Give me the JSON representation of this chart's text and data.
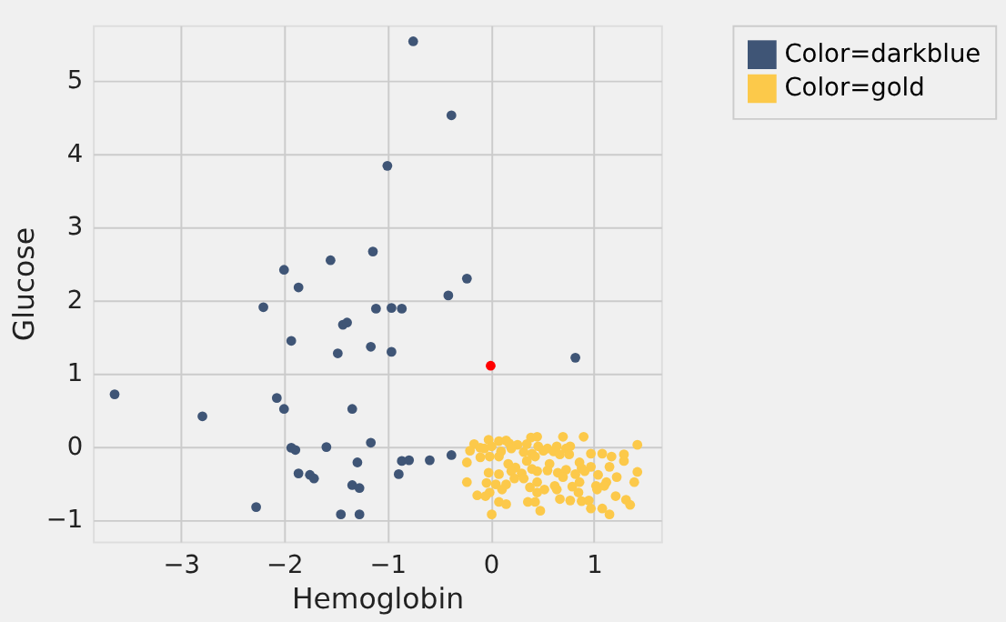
{
  "chart_data": {
    "type": "scatter",
    "xlabel": "Hemoglobin",
    "ylabel": "Glucose",
    "xlim": [
      -3.85,
      1.65
    ],
    "ylim": [
      -1.3,
      5.75
    ],
    "xticks": [
      -3,
      -2,
      -1,
      0,
      1
    ],
    "yticks": [
      -1,
      0,
      1,
      2,
      3,
      4,
      5
    ],
    "grid": true,
    "legend": "top right",
    "marker": "circle",
    "series": [
      {
        "name": "Color=darkblue",
        "color": "#3f5576",
        "x": [
          -3.64,
          -2.79,
          -2.2,
          -2.27,
          -2.0,
          -1.86,
          -2.07,
          -2.0,
          -1.93,
          -1.93,
          -1.89,
          -1.86,
          -1.75,
          -1.71,
          -1.59,
          -1.55,
          -1.48,
          -1.43,
          -1.39,
          -1.34,
          -1.45,
          -1.27,
          -1.34,
          -1.27,
          -1.29,
          -1.16,
          -1.14,
          -1.11,
          -1.16,
          -1.0,
          -0.96,
          -0.96,
          -0.86,
          -0.89,
          -0.86,
          -0.79,
          -0.75,
          -0.59,
          -0.38,
          -0.41,
          -0.23,
          -0.38,
          0.82
        ],
        "values": [
          0.71,
          0.41,
          1.9,
          -0.83,
          2.41,
          2.17,
          0.66,
          0.51,
          1.44,
          -0.02,
          -0.05,
          -0.37,
          -0.39,
          -0.44,
          -0.01,
          2.54,
          1.27,
          1.66,
          1.69,
          0.51,
          -0.93,
          -0.93,
          -0.53,
          -0.57,
          -0.22,
          0.05,
          2.66,
          1.88,
          1.36,
          3.83,
          1.89,
          1.29,
          1.88,
          -0.38,
          -0.2,
          -0.19,
          5.53,
          -0.19,
          4.52,
          2.06,
          2.29,
          -0.12,
          1.21
        ]
      },
      {
        "name": "Color=gold",
        "color": "#fcc94a",
        "x": [
          -0.02,
          0.08,
          0.15,
          0.18,
          0.39,
          0.45,
          0.7,
          0.9,
          -0.16,
          -0.1,
          0.01,
          0.26,
          0.35,
          0.46,
          0.55,
          0.64,
          0.77,
          1.42,
          -0.2,
          -0.06,
          0.1,
          0.2,
          0.32,
          0.4,
          0.51,
          0.61,
          0.73,
          -0.23,
          -0.1,
          -0.01,
          0.08,
          0.17,
          0.24,
          0.35,
          0.43,
          0.57,
          0.67,
          0.76,
          0.86,
          0.97,
          1.08,
          1.17,
          1.29,
          1.29,
          0.97,
          1.15,
          1.42,
          0.88,
          -0.02,
          0.08,
          0.2,
          0.3,
          0.4,
          0.45,
          0.55,
          0.65,
          0.73,
          0.82,
          0.91,
          1.04,
          1.12,
          1.22,
          1.39,
          -0.23,
          -0.04,
          0.05,
          0.15,
          0.23,
          0.32,
          0.45,
          0.62,
          0.7,
          0.79,
          0.86,
          1.02,
          1.1,
          -0.13,
          -0.01,
          0.11,
          0.38,
          0.45,
          0.52,
          0.64,
          0.85,
          1.03,
          1.21,
          -0.05,
          0.08,
          0.15,
          0.36,
          0.43,
          0.48,
          0.67,
          0.77,
          0.88,
          0.95,
          0.97,
          1.08,
          1.15,
          1.31,
          1.35,
          0.01
        ],
        "values": [
          0.09,
          0.07,
          0.08,
          0.04,
          0.12,
          0.13,
          0.13,
          0.13,
          0.03,
          -0.02,
          0.0,
          0.02,
          0.03,
          0.0,
          -0.03,
          0.0,
          0.0,
          0.02,
          -0.06,
          -0.03,
          -0.07,
          -0.03,
          -0.08,
          -0.1,
          -0.06,
          -0.07,
          -0.03,
          -0.22,
          -0.15,
          -0.14,
          -0.14,
          -0.24,
          -0.29,
          -0.2,
          -0.14,
          -0.24,
          -0.11,
          -0.11,
          -0.22,
          -0.1,
          -0.1,
          -0.14,
          -0.11,
          -0.2,
          -0.28,
          -0.28,
          -0.35,
          -0.3,
          -0.36,
          -0.38,
          -0.34,
          -0.37,
          -0.31,
          -0.34,
          -0.33,
          -0.36,
          -0.32,
          -0.38,
          -0.34,
          -0.39,
          -0.49,
          -0.42,
          -0.49,
          -0.49,
          -0.5,
          -0.52,
          -0.52,
          -0.44,
          -0.44,
          -0.49,
          -0.54,
          -0.42,
          -0.55,
          -0.49,
          -0.54,
          -0.54,
          -0.67,
          -0.63,
          -0.59,
          -0.56,
          -0.63,
          -0.59,
          -0.59,
          -0.63,
          -0.59,
          -0.68,
          -0.68,
          -0.76,
          -0.79,
          -0.76,
          -0.76,
          -0.88,
          -0.72,
          -0.74,
          -0.75,
          -0.74,
          -0.85,
          -0.85,
          -0.93,
          -0.73,
          -0.8,
          -0.93
        ]
      },
      {
        "color": "#ff0000",
        "x": [
          0.0
        ],
        "values": [
          1.1
        ]
      }
    ]
  }
}
